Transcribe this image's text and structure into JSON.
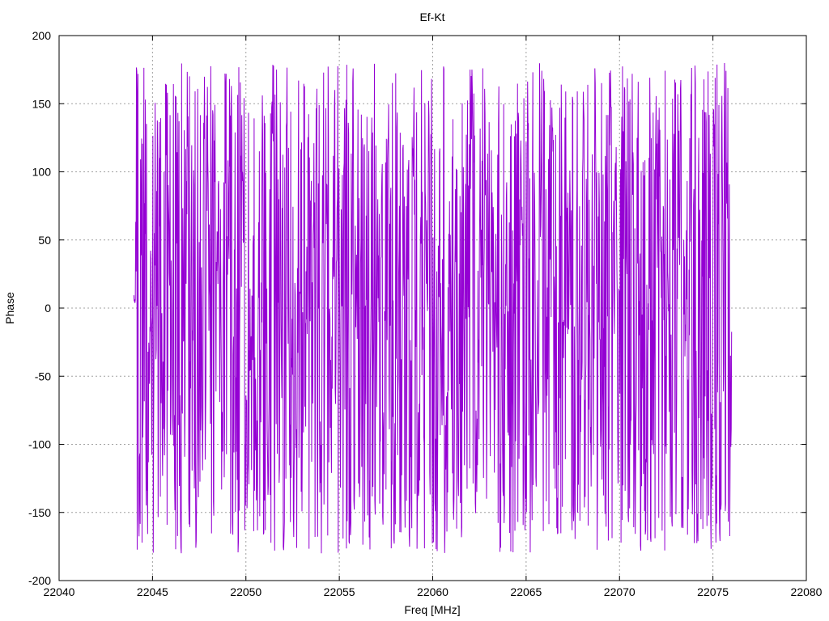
{
  "chart_data": {
    "type": "line",
    "title": "Ef-Kt",
    "xlabel": "Freq [MHz]",
    "ylabel": "Phase",
    "xlim": [
      22040,
      22080
    ],
    "ylim": [
      -200,
      200
    ],
    "x_ticks": [
      22040,
      22045,
      22050,
      22055,
      22060,
      22065,
      22070,
      22075,
      22080
    ],
    "y_ticks": [
      -200,
      -150,
      -100,
      -50,
      0,
      50,
      100,
      150,
      200
    ],
    "grid": true,
    "legend": "none",
    "series": [
      {
        "color": "#9400d3",
        "x_range": [
          22044.0,
          22076.0
        ],
        "sample_step": 0.02,
        "phase_range": [
          -180,
          180
        ],
        "start_phase": 5,
        "note_shape": "dense rapidly wrapping phase noise spanning full -180..180 range"
      }
    ]
  }
}
